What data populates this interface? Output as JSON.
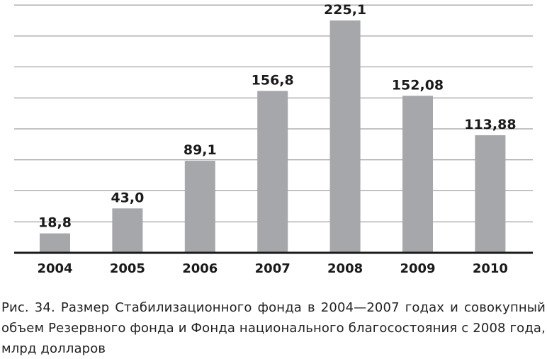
{
  "chart_data": {
    "type": "bar",
    "categories": [
      "2004",
      "2005",
      "2006",
      "2007",
      "2008",
      "2009",
      "2010"
    ],
    "values": [
      18.8,
      43.0,
      89.1,
      156.8,
      225.1,
      152.08,
      113.88
    ],
    "value_labels": [
      "18,8",
      "43,0",
      "89,1",
      "156,8",
      "225,1",
      "152,08",
      "113,88"
    ],
    "title": "",
    "xlabel": "",
    "ylabel": "",
    "ylim": [
      0,
      230
    ],
    "grid": true,
    "legend": "none",
    "colors": {
      "bar": "#a6a7aa",
      "grid": "#8a8a8a",
      "axis": "#1a1a1a",
      "text": "#1a1a1a"
    }
  },
  "caption": "Рис. 34. Размер Стабилизационного фонда в 2004—2007 годах и совокупный объем Резервного фонда и Фонда национального благосостояния с 2008 года, млрд долларов"
}
